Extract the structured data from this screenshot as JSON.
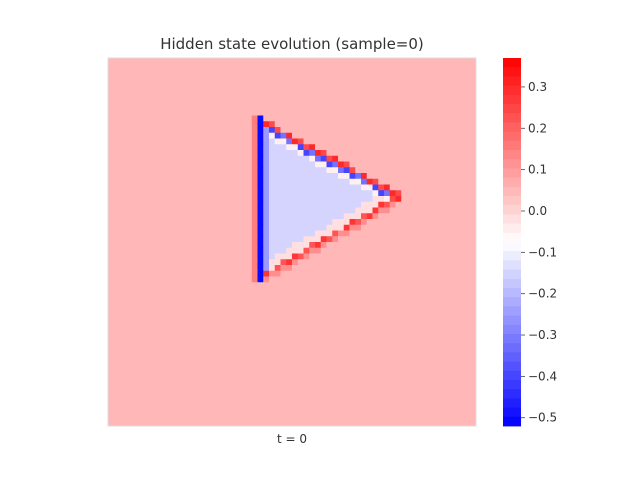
{
  "chart_data": {
    "type": "heatmap",
    "title": "Hidden state evolution (sample=0)",
    "xlabel": "t = 0",
    "ylabel": "",
    "grid_size": 64,
    "grid": false,
    "colormap": "bwr",
    "background_value": 0.05,
    "interior_value": -0.15,
    "shape": {
      "kind": "triangle",
      "vertices": [
        [
          26,
          11
        ],
        [
          26,
          38
        ],
        [
          50,
          24
        ]
      ]
    },
    "colorbar": {
      "position": "right",
      "vmin": -0.52,
      "vmax": 0.37,
      "ticks": [
        0.3,
        0.2,
        0.1,
        0.0,
        -0.1,
        -0.2,
        -0.3,
        -0.4,
        -0.5
      ],
      "tick_labels": [
        "0.3",
        "0.2",
        "0.1",
        "0.0",
        "−0.1",
        "−0.2",
        "−0.3",
        "−0.4",
        "−0.5"
      ]
    }
  }
}
